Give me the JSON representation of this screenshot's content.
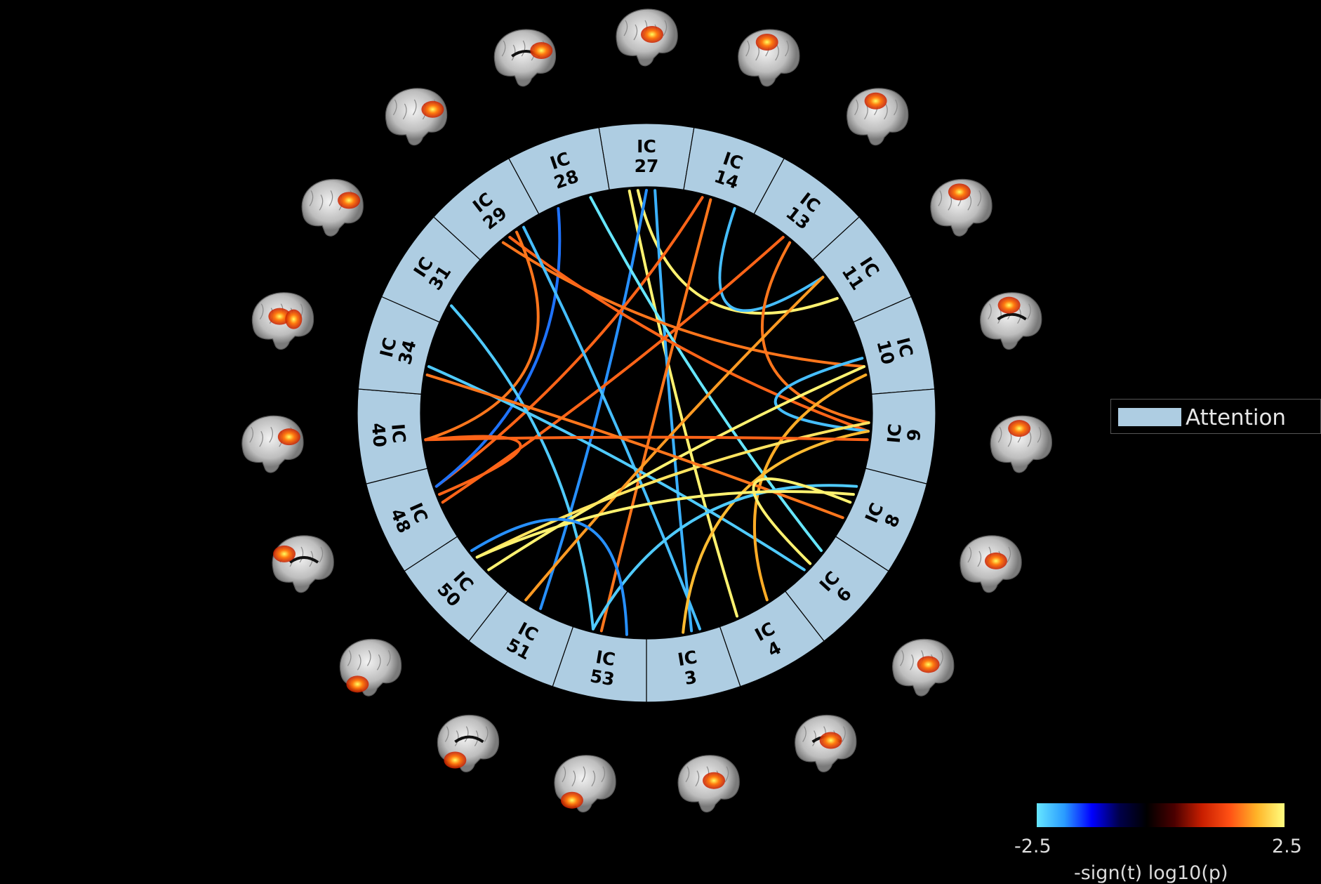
{
  "diagram": {
    "components": [
      "27",
      "14",
      "13",
      "11",
      "10",
      "9",
      "8",
      "6",
      "4",
      "3",
      "53",
      "51",
      "50",
      "48",
      "40",
      "34",
      "31",
      "29",
      "28"
    ],
    "segment_prefix": "IC",
    "segment_color": "#aecde2",
    "edges": [
      {
        "a": "27",
        "b": "4",
        "t": 2.4
      },
      {
        "a": "27",
        "b": "11",
        "t": 2.4
      },
      {
        "a": "27",
        "b": "51",
        "t": -1.9
      },
      {
        "a": "27",
        "b": "3",
        "t": -2.1
      },
      {
        "a": "14",
        "b": "11",
        "t": -2.2
      },
      {
        "a": "14",
        "b": "48",
        "t": 1.5
      },
      {
        "a": "14",
        "b": "53",
        "t": 1.6
      },
      {
        "a": "13",
        "b": "48",
        "t": 1.5
      },
      {
        "a": "13",
        "b": "9",
        "t": 1.6
      },
      {
        "a": "28",
        "b": "6",
        "t": -2.5
      },
      {
        "a": "28",
        "b": "48",
        "t": -1.8
      },
      {
        "a": "29",
        "b": "10",
        "t": 1.6
      },
      {
        "a": "29",
        "b": "9",
        "t": 1.5
      },
      {
        "a": "29",
        "b": "40",
        "t": 1.6
      },
      {
        "a": "29",
        "b": "3",
        "t": -2.2
      },
      {
        "a": "31",
        "b": "53",
        "t": -2.3
      },
      {
        "a": "34",
        "b": "6",
        "t": -2.3
      },
      {
        "a": "10",
        "b": "9",
        "t": -2.2
      },
      {
        "a": "10",
        "b": "50",
        "t": 2.4
      },
      {
        "a": "10",
        "b": "4",
        "t": 1.9
      },
      {
        "a": "11",
        "b": "51",
        "t": 1.8
      },
      {
        "a": "9",
        "b": "50",
        "t": 2.3
      },
      {
        "a": "9",
        "b": "3",
        "t": 2.0
      },
      {
        "a": "9",
        "b": "40",
        "t": 1.5
      },
      {
        "a": "8",
        "b": "34",
        "t": 1.6
      },
      {
        "a": "8",
        "b": "53",
        "t": -2.3
      },
      {
        "a": "8",
        "b": "50",
        "t": 2.4
      },
      {
        "a": "6",
        "b": "8",
        "t": 2.4
      },
      {
        "a": "48",
        "b": "40",
        "t": 1.5
      },
      {
        "a": "50",
        "b": "53",
        "t": -1.9
      }
    ]
  },
  "thumbnails": [
    {
      "name": "thumb-ic27",
      "view": "side",
      "blob": "mid"
    },
    {
      "name": "thumb-ic14",
      "view": "side",
      "blob": "top"
    },
    {
      "name": "thumb-ic13",
      "view": "side",
      "blob": "top"
    },
    {
      "name": "thumb-ic11",
      "view": "side",
      "blob": "top"
    },
    {
      "name": "thumb-ic10",
      "view": "medial",
      "blob": "top"
    },
    {
      "name": "thumb-ic9",
      "view": "side",
      "blob": "top"
    },
    {
      "name": "thumb-ic8",
      "view": "side",
      "blob": "mid"
    },
    {
      "name": "thumb-ic6",
      "view": "side",
      "blob": "mid"
    },
    {
      "name": "thumb-ic4",
      "view": "medial",
      "blob": "mid"
    },
    {
      "name": "thumb-ic3",
      "view": "side",
      "blob": "mid"
    },
    {
      "name": "thumb-ic53",
      "view": "side",
      "blob": "low"
    },
    {
      "name": "thumb-ic51",
      "view": "medial",
      "blob": "low"
    },
    {
      "name": "thumb-ic50",
      "view": "side",
      "blob": "low"
    },
    {
      "name": "thumb-ic48",
      "view": "medial",
      "blob": "front"
    },
    {
      "name": "thumb-ic40",
      "view": "side",
      "blob": "back"
    },
    {
      "name": "thumb-ic34",
      "view": "side",
      "blob": "double"
    },
    {
      "name": "thumb-ic31",
      "view": "side",
      "blob": "back"
    },
    {
      "name": "thumb-ic29",
      "view": "side",
      "blob": "back"
    },
    {
      "name": "thumb-ic28",
      "view": "medial",
      "blob": "back"
    }
  ],
  "legend": {
    "label": "Attention",
    "color": "#aecde2"
  },
  "colorbar": {
    "min_label": "-2.5",
    "max_label": "2.5",
    "title": "-sign(t) log10(p)",
    "min": -2.5,
    "max": 2.5,
    "stops": [
      "#66e6ff",
      "#2a9cff",
      "#0000ff",
      "#00004a",
      "#000000",
      "#4a0000",
      "#c81e00",
      "#ff5014",
      "#ffb428",
      "#ffff80"
    ]
  },
  "colors": {
    "background": "#000000",
    "segment_border": "#000000",
    "segment_text": "#000000"
  }
}
